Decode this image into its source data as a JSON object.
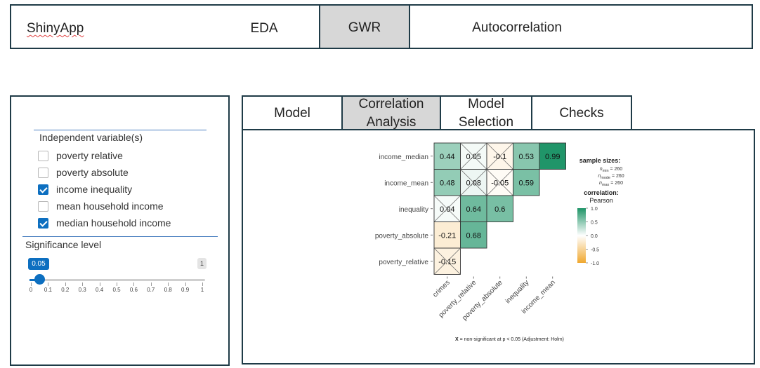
{
  "navbar": {
    "brand": "ShinyApp",
    "tabs": [
      {
        "label": "EDA",
        "active": false
      },
      {
        "label": "GWR",
        "active": true
      },
      {
        "label": "Autocorrelation",
        "active": false
      }
    ]
  },
  "sidebar": {
    "independent_title": "Independent variable(s)",
    "variables": [
      {
        "label": "poverty relative",
        "checked": false
      },
      {
        "label": "poverty absolute",
        "checked": false
      },
      {
        "label": "income inequality",
        "checked": true
      },
      {
        "label": "mean household income",
        "checked": false
      },
      {
        "label": "median household income",
        "checked": true
      }
    ],
    "significance": {
      "title": "Significance level",
      "value": "0.05",
      "max_label": "1",
      "min": 0,
      "max": 1,
      "fraction": 0.05,
      "ticks": [
        "0",
        "0.1",
        "0.2",
        "0.3",
        "0.4",
        "0.5",
        "0.6",
        "0.7",
        "0.8",
        "0.9",
        "1"
      ]
    }
  },
  "main": {
    "tabs": [
      {
        "label": "Model",
        "active": false
      },
      {
        "label": "Correlation Analysis",
        "active": true
      },
      {
        "label": "Model Selection",
        "active": false
      },
      {
        "label": "Checks",
        "active": false
      }
    ]
  },
  "chart_data": {
    "type": "heatmap",
    "rows": [
      "income_median",
      "income_mean",
      "inequality",
      "poverty_absolute",
      "poverty_relative"
    ],
    "columns": [
      "crimes",
      "poverty_relative",
      "poverty_absolute",
      "inequality",
      "income_mean"
    ],
    "cells": [
      [
        {
          "v": 0.44,
          "label": "0.44",
          "ns": false
        },
        {
          "v": 0.05,
          "label": "0.05",
          "ns": true
        },
        {
          "v": -0.1,
          "label": "-0.1",
          "ns": true
        },
        {
          "v": 0.53,
          "label": "0.53",
          "ns": false
        },
        {
          "v": 0.99,
          "label": "0.99",
          "ns": false
        }
      ],
      [
        {
          "v": 0.48,
          "label": "0.48",
          "ns": false
        },
        {
          "v": 0.08,
          "label": "0.08",
          "ns": true
        },
        {
          "v": -0.05,
          "label": "-0.05",
          "ns": true
        },
        {
          "v": 0.59,
          "label": "0.59",
          "ns": false
        },
        null
      ],
      [
        {
          "v": 0.04,
          "label": "0.04",
          "ns": true
        },
        {
          "v": 0.64,
          "label": "0.64",
          "ns": false
        },
        {
          "v": 0.6,
          "label": "0.6",
          "ns": false
        },
        null,
        null
      ],
      [
        {
          "v": -0.21,
          "label": "-0.21",
          "ns": false
        },
        {
          "v": 0.68,
          "label": "0.68",
          "ns": false
        },
        null,
        null,
        null
      ],
      [
        {
          "v": -0.15,
          "label": "-0.15",
          "ns": true
        },
        null,
        null,
        null,
        null
      ]
    ],
    "legend": {
      "sample_title": "sample sizes:",
      "sample_sizes": [
        {
          "sub": "min",
          "value": "260"
        },
        {
          "sub": "mode",
          "value": "260"
        },
        {
          "sub": "max",
          "value": "260"
        }
      ],
      "correlation_title": "correlation:",
      "method": "Pearson",
      "scale_ticks": [
        "1.0",
        "0.5",
        "0.0",
        "-0.5",
        "-1.0"
      ],
      "range": [
        -1,
        1
      ]
    },
    "caption_bold": "X",
    "caption_rest": " = non-significant at p < 0.05 (Adjustment: Holm)",
    "colors": {
      "positive": "#1e9467",
      "zero": "#ffffff",
      "negative": "#f0a830"
    }
  }
}
